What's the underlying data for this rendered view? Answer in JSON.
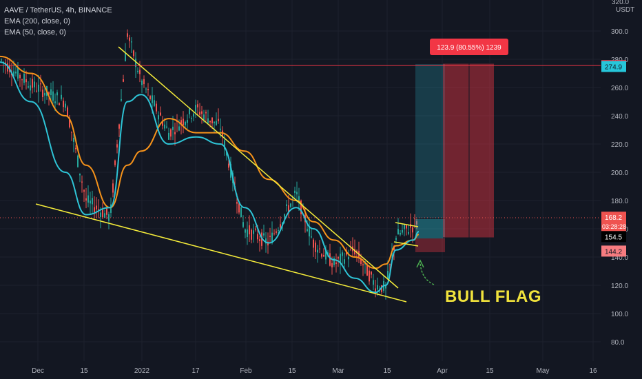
{
  "header": {
    "title": "AAVE / TetherUS, 4h, BINANCE",
    "indicators": [
      "EMA (200, close, 0)",
      "EMA (50, close, 0)"
    ]
  },
  "colors": {
    "background": "#131722",
    "candle_up": "#26a69a",
    "candle_down": "#ef5350",
    "ema200": "#f7931a",
    "ema50": "#2ec4d6",
    "trendline": "#f5ec3a",
    "resistance": "#f23645",
    "stop_zone": "#f23645",
    "target_zone": "#2ec4d6"
  },
  "annotation": {
    "label": "BULL FLAG",
    "measure_box": "123.9 (80.55%) 1239"
  },
  "y_axis": {
    "unit": "USDT",
    "top_label": "320.0",
    "ticks": [
      "300.0",
      "280.0",
      "260.0",
      "240.0",
      "220.0",
      "200.0",
      "180.0",
      "160.0",
      "140.0",
      "120.0",
      "100.0",
      "80.0"
    ],
    "tags": [
      {
        "value": "275.5",
        "bg": "#f23645",
        "fg": "#ffffff"
      },
      {
        "value": "274.9",
        "bg": "#26c6da",
        "fg": "#131722"
      },
      {
        "value": "168.2",
        "bg": "#ef5350",
        "fg": "#ffffff",
        "sub": "03:28:28"
      },
      {
        "value": "154.5",
        "bg": "#000000",
        "fg": "#ffffff"
      },
      {
        "value": "144.2",
        "bg": "#f77c80",
        "fg": "#131722"
      }
    ]
  },
  "x_axis": {
    "ticks": [
      "Dec",
      "15",
      "2022",
      "17",
      "Feb",
      "15",
      "Mar",
      "15",
      "Apr",
      "15",
      "May",
      "16"
    ]
  },
  "chart_data": {
    "type": "line",
    "title": "AAVE / TetherUS, 4h, BINANCE",
    "xlabel": "",
    "ylabel": "USDT",
    "ylim": [
      70,
      320
    ],
    "x": [
      "Nov 25",
      "Dec 1",
      "Dec 8",
      "Dec 15",
      "Dec 22",
      "Dec 28",
      "Jan 1",
      "Jan 8",
      "Jan 15",
      "Jan 22",
      "Jan 29",
      "Feb 5",
      "Feb 12",
      "Feb 19",
      "Feb 26",
      "Mar 5",
      "Mar 12",
      "Mar 15",
      "Mar 19",
      "Mar 23",
      "Mar 24"
    ],
    "series": [
      {
        "name": "EMA (200, close, 0)",
        "values": [
          282,
          270,
          240,
          205,
          175,
          205,
          215,
          238,
          228,
          228,
          215,
          195,
          180,
          165,
          152,
          140,
          132,
          135,
          148,
          152,
          156
        ]
      },
      {
        "name": "EMA (50, close, 0)",
        "values": [
          278,
          250,
          200,
          170,
          175,
          250,
          255,
          220,
          225,
          220,
          175,
          150,
          175,
          160,
          138,
          125,
          115,
          120,
          145,
          152,
          158
        ]
      }
    ],
    "price_candles_approx": [
      280,
      262,
      250,
      180,
      168,
      298,
      265,
      228,
      245,
      232,
      160,
      150,
      185,
      150,
      135,
      145,
      120,
      118,
      155,
      162,
      168
    ],
    "key_levels": {
      "resistance": 275.5,
      "current": 168.2,
      "entry": 154.5,
      "stop": 144.2
    }
  }
}
